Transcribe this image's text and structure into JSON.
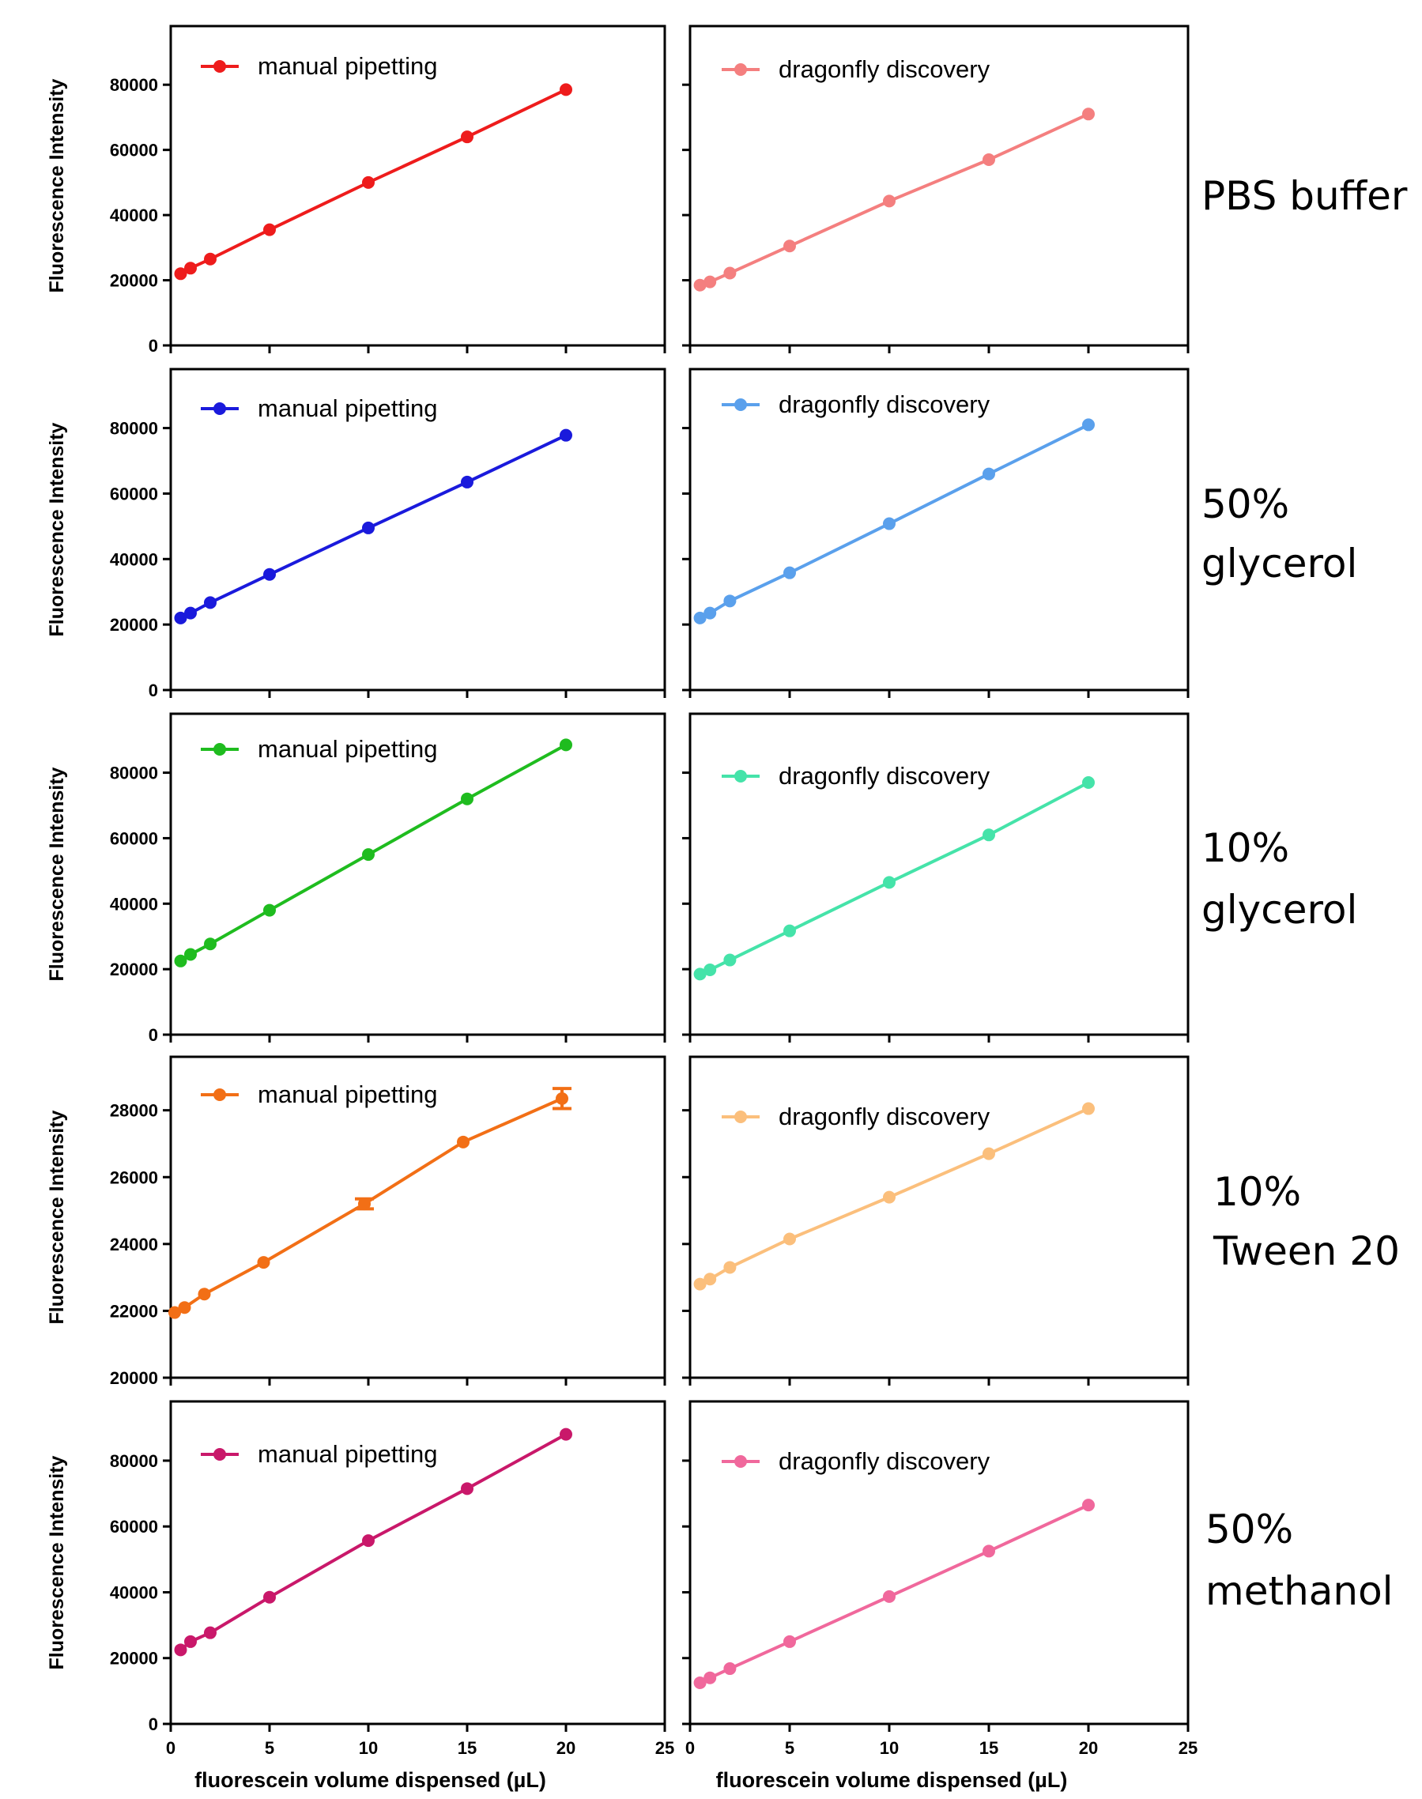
{
  "chart_data": {
    "type": "line",
    "x": [
      0.5,
      1,
      2,
      5,
      10,
      15,
      20
    ],
    "xlabel": "fluorescein volume dispensed (µL)",
    "ylabel": "Fluorescence Intensity",
    "xlim": [
      0,
      25
    ],
    "x_ticks": [
      "0",
      "5",
      "10",
      "15",
      "20",
      "25"
    ],
    "panels": [
      {
        "condition": [
          "PBS buffer"
        ],
        "ylim": [
          0,
          98000
        ],
        "y_ticks": [
          "0",
          "20000",
          "40000",
          "60000",
          "80000"
        ],
        "series": [
          {
            "name": "manual pipetting",
            "color": "#ee1c1c",
            "values": [
              22000,
              23700,
              26500,
              35500,
              50000,
              64000,
              78500
            ]
          },
          {
            "name": "dragonfly discovery",
            "color": "#f47f7f",
            "values": [
              18500,
              19500,
              22200,
              30500,
              44300,
              57000,
              71000
            ]
          }
        ]
      },
      {
        "condition": [
          "50%",
          "glycerol"
        ],
        "ylim": [
          0,
          98000
        ],
        "y_ticks": [
          "0",
          "20000",
          "40000",
          "60000",
          "80000"
        ],
        "series": [
          {
            "name": "manual pipetting",
            "color": "#1a1adc",
            "values": [
              22000,
              23500,
              26700,
              35300,
              49500,
              63500,
              77800
            ]
          },
          {
            "name": "dragonfly discovery",
            "color": "#5aa0ec",
            "values": [
              22000,
              23500,
              27200,
              35800,
              50800,
              66000,
              81000
            ]
          }
        ]
      },
      {
        "condition": [
          "10%",
          "glycerol"
        ],
        "ylim": [
          0,
          98000
        ],
        "y_ticks": [
          "0",
          "20000",
          "40000",
          "60000",
          "80000"
        ],
        "series": [
          {
            "name": "manual pipetting",
            "color": "#1fbc1f",
            "values": [
              22500,
              24500,
              27700,
              38000,
              55000,
              72000,
              88500
            ]
          },
          {
            "name": "dragonfly discovery",
            "color": "#45e3a9",
            "values": [
              18500,
              19800,
              22800,
              31700,
              46500,
              61000,
              77000
            ]
          }
        ]
      },
      {
        "condition": [
          "10%",
          "Tween 20"
        ],
        "ylim": [
          20000,
          29600
        ],
        "y_ticks": [
          "20000",
          "22000",
          "24000",
          "26000",
          "28000"
        ],
        "series": [
          {
            "name": "manual pipetting",
            "color": "#f26f16",
            "x": [
              0.2,
              0.7,
              1.7,
              4.7,
              9.8,
              14.8,
              19.8
            ],
            "values": [
              21950,
              22100,
              22500,
              23450,
              25200,
              27050,
              28350
            ],
            "errors": [
              0,
              0,
              0,
              0,
              150,
              0,
              300
            ]
          },
          {
            "name": "dragonfly discovery",
            "color": "#fbbf7c",
            "values": [
              22800,
              22950,
              23300,
              24150,
              25400,
              26700,
              28050
            ]
          }
        ]
      },
      {
        "condition": [
          "50%",
          "methanol"
        ],
        "ylim": [
          0,
          98000
        ],
        "y_ticks": [
          "0",
          "20000",
          "40000",
          "60000",
          "80000"
        ],
        "series": [
          {
            "name": "manual pipetting",
            "color": "#c9186a",
            "values": [
              22500,
              25000,
              27700,
              38500,
              55700,
              71500,
              88000
            ]
          },
          {
            "name": "dragonfly discovery",
            "color": "#f0689c",
            "values": [
              12500,
              14000,
              16800,
              25000,
              38700,
              52500,
              66500
            ]
          }
        ]
      }
    ]
  }
}
